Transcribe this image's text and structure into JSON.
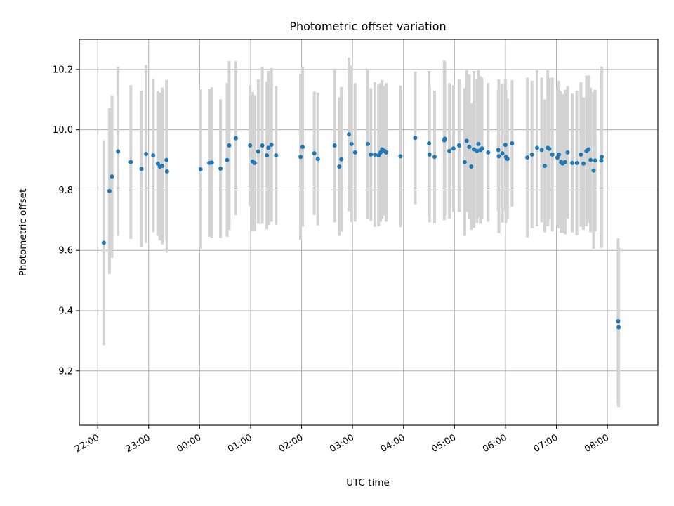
{
  "chart_data": {
    "type": "scatter",
    "title": "Photometric offset variation",
    "xlabel": "UTC time",
    "ylabel": "Photometric offset",
    "x_unit": "UTC hour of night (22:00 start, wraps past midnight)",
    "xlim": [
      21.64,
      32.99
    ],
    "ylim": [
      9.02,
      10.3
    ],
    "grid": true,
    "x_ticks": [
      {
        "value": 22,
        "label": "22:00"
      },
      {
        "value": 23,
        "label": "23:00"
      },
      {
        "value": 24,
        "label": "00:00"
      },
      {
        "value": 25,
        "label": "01:00"
      },
      {
        "value": 26,
        "label": "02:00"
      },
      {
        "value": 27,
        "label": "03:00"
      },
      {
        "value": 28,
        "label": "04:00"
      },
      {
        "value": 29,
        "label": "05:00"
      },
      {
        "value": 30,
        "label": "06:00"
      },
      {
        "value": 31,
        "label": "07:00"
      },
      {
        "value": 32,
        "label": "08:00"
      }
    ],
    "y_ticks": [
      {
        "value": 9.2,
        "label": "9.2"
      },
      {
        "value": 9.4,
        "label": "9.4"
      },
      {
        "value": 9.6,
        "label": "9.6"
      },
      {
        "value": 9.8,
        "label": "9.8"
      },
      {
        "value": 10.0,
        "label": "10.0"
      },
      {
        "value": 10.2,
        "label": "10.2"
      }
    ],
    "colors": {
      "marker": "#1f77b4",
      "errorbar": "#d3d3d3",
      "grid": "#b0b0b0"
    },
    "series": [
      {
        "points": [
          {
            "x": 22.12,
            "y": 9.625,
            "err": 0.34
          },
          {
            "x": 22.23,
            "y": 9.797,
            "err": 0.275
          },
          {
            "x": 22.28,
            "y": 9.845,
            "err": 0.27
          },
          {
            "x": 22.4,
            "y": 9.928,
            "err": 0.28
          },
          {
            "x": 22.65,
            "y": 9.893,
            "err": 0.255
          },
          {
            "x": 22.86,
            "y": 9.87,
            "err": 0.26
          },
          {
            "x": 22.95,
            "y": 9.92,
            "err": 0.295
          },
          {
            "x": 23.09,
            "y": 9.915,
            "err": 0.255
          },
          {
            "x": 23.18,
            "y": 9.888,
            "err": 0.24
          },
          {
            "x": 23.22,
            "y": 9.878,
            "err": 0.245
          },
          {
            "x": 23.27,
            "y": 9.88,
            "err": 0.26
          },
          {
            "x": 23.35,
            "y": 9.9,
            "err": 0.265
          },
          {
            "x": 23.36,
            "y": 9.862,
            "err": 0.27
          },
          {
            "x": 24.02,
            "y": 9.869,
            "err": 0.265
          },
          {
            "x": 24.19,
            "y": 9.89,
            "err": 0.245
          },
          {
            "x": 24.24,
            "y": 9.891,
            "err": 0.25
          },
          {
            "x": 24.41,
            "y": 9.871,
            "err": 0.23
          },
          {
            "x": 24.54,
            "y": 9.9,
            "err": 0.255
          },
          {
            "x": 24.58,
            "y": 9.948,
            "err": 0.28
          },
          {
            "x": 24.71,
            "y": 9.972,
            "err": 0.255
          },
          {
            "x": 24.99,
            "y": 9.948,
            "err": 0.2
          },
          {
            "x": 25.04,
            "y": 9.895,
            "err": 0.23
          },
          {
            "x": 25.08,
            "y": 9.89,
            "err": 0.225
          },
          {
            "x": 25.15,
            "y": 9.928,
            "err": 0.24
          },
          {
            "x": 25.23,
            "y": 9.948,
            "err": 0.26
          },
          {
            "x": 25.32,
            "y": 9.915,
            "err": 0.245
          },
          {
            "x": 25.35,
            "y": 9.94,
            "err": 0.255
          },
          {
            "x": 25.41,
            "y": 9.95,
            "err": 0.255
          },
          {
            "x": 25.5,
            "y": 9.915,
            "err": 0.23
          },
          {
            "x": 25.98,
            "y": 9.91,
            "err": 0.275
          },
          {
            "x": 26.02,
            "y": 9.943,
            "err": 0.265
          },
          {
            "x": 26.25,
            "y": 9.922,
            "err": 0.205
          },
          {
            "x": 26.32,
            "y": 9.903,
            "err": 0.22
          },
          {
            "x": 26.65,
            "y": 9.948,
            "err": 0.255
          },
          {
            "x": 26.74,
            "y": 9.878,
            "err": 0.23
          },
          {
            "x": 26.78,
            "y": 9.902,
            "err": 0.24
          },
          {
            "x": 26.93,
            "y": 9.985,
            "err": 0.255
          },
          {
            "x": 26.98,
            "y": 9.953,
            "err": 0.26
          },
          {
            "x": 27.05,
            "y": 9.925,
            "err": 0.23
          },
          {
            "x": 27.3,
            "y": 9.953,
            "err": 0.25
          },
          {
            "x": 27.36,
            "y": 9.918,
            "err": 0.22
          },
          {
            "x": 27.44,
            "y": 9.918,
            "err": 0.24
          },
          {
            "x": 27.51,
            "y": 9.915,
            "err": 0.235
          },
          {
            "x": 27.55,
            "y": 9.925,
            "err": 0.23
          },
          {
            "x": 27.58,
            "y": 9.935,
            "err": 0.23
          },
          {
            "x": 27.63,
            "y": 9.93,
            "err": 0.215
          },
          {
            "x": 27.66,
            "y": 9.925,
            "err": 0.23
          },
          {
            "x": 27.94,
            "y": 9.912,
            "err": 0.235
          },
          {
            "x": 28.23,
            "y": 9.973,
            "err": 0.22
          },
          {
            "x": 28.5,
            "y": 9.955,
            "err": 0.24
          },
          {
            "x": 28.51,
            "y": 9.918,
            "err": 0.225
          },
          {
            "x": 28.61,
            "y": 9.91,
            "err": 0.22
          },
          {
            "x": 28.8,
            "y": 9.965,
            "err": 0.265
          },
          {
            "x": 28.81,
            "y": 9.97,
            "err": 0.255
          },
          {
            "x": 28.9,
            "y": 9.93,
            "err": 0.225
          },
          {
            "x": 28.98,
            "y": 9.938,
            "err": 0.21
          },
          {
            "x": 29.09,
            "y": 9.948,
            "err": 0.22
          },
          {
            "x": 29.2,
            "y": 9.893,
            "err": 0.245
          },
          {
            "x": 29.24,
            "y": 9.963,
            "err": 0.235
          },
          {
            "x": 29.29,
            "y": 9.943,
            "err": 0.24
          },
          {
            "x": 29.33,
            "y": 9.878,
            "err": 0.21
          },
          {
            "x": 29.38,
            "y": 9.935,
            "err": 0.26
          },
          {
            "x": 29.44,
            "y": 9.93,
            "err": 0.24
          },
          {
            "x": 29.47,
            "y": 9.953,
            "err": 0.245
          },
          {
            "x": 29.51,
            "y": 9.933,
            "err": 0.245
          },
          {
            "x": 29.54,
            "y": 9.938,
            "err": 0.235
          },
          {
            "x": 29.66,
            "y": 9.925,
            "err": 0.23
          },
          {
            "x": 29.86,
            "y": 9.933,
            "err": 0.2
          },
          {
            "x": 29.87,
            "y": 9.912,
            "err": 0.255
          },
          {
            "x": 29.94,
            "y": 9.922,
            "err": 0.23
          },
          {
            "x": 30.0,
            "y": 9.95,
            "err": 0.22
          },
          {
            "x": 30.01,
            "y": 9.91,
            "err": 0.22
          },
          {
            "x": 30.04,
            "y": 9.903,
            "err": 0.2
          },
          {
            "x": 30.13,
            "y": 9.955,
            "err": 0.21
          },
          {
            "x": 30.43,
            "y": 9.908,
            "err": 0.265
          },
          {
            "x": 30.52,
            "y": 9.918,
            "err": 0.245
          },
          {
            "x": 30.62,
            "y": 9.94,
            "err": 0.26
          },
          {
            "x": 30.71,
            "y": 9.933,
            "err": 0.24
          },
          {
            "x": 30.77,
            "y": 9.88,
            "err": 0.22
          },
          {
            "x": 30.83,
            "y": 9.94,
            "err": 0.26
          },
          {
            "x": 30.86,
            "y": 9.937,
            "err": 0.235
          },
          {
            "x": 30.92,
            "y": 9.918,
            "err": 0.255
          },
          {
            "x": 31.02,
            "y": 9.908,
            "err": 0.23
          },
          {
            "x": 31.05,
            "y": 9.918,
            "err": 0.245
          },
          {
            "x": 31.09,
            "y": 9.893,
            "err": 0.235
          },
          {
            "x": 31.12,
            "y": 9.888,
            "err": 0.23
          },
          {
            "x": 31.17,
            "y": 9.893,
            "err": 0.24
          },
          {
            "x": 31.22,
            "y": 9.925,
            "err": 0.22
          },
          {
            "x": 31.31,
            "y": 9.89,
            "err": 0.23
          },
          {
            "x": 31.4,
            "y": 9.89,
            "err": 0.24
          },
          {
            "x": 31.48,
            "y": 9.918,
            "err": 0.24
          },
          {
            "x": 31.53,
            "y": 9.888,
            "err": 0.22
          },
          {
            "x": 31.59,
            "y": 9.93,
            "err": 0.25
          },
          {
            "x": 31.63,
            "y": 9.935,
            "err": 0.245
          },
          {
            "x": 31.67,
            "y": 9.9,
            "err": 0.24
          },
          {
            "x": 31.73,
            "y": 9.865,
            "err": 0.26
          },
          {
            "x": 31.76,
            "y": 9.898,
            "err": 0.235
          },
          {
            "x": 31.88,
            "y": 9.898,
            "err": 0.29
          },
          {
            "x": 31.89,
            "y": 9.91,
            "err": 0.3
          },
          {
            "x": 32.21,
            "y": 9.365,
            "err": 0.275
          },
          {
            "x": 32.22,
            "y": 9.345,
            "err": 0.265
          }
        ]
      }
    ]
  }
}
